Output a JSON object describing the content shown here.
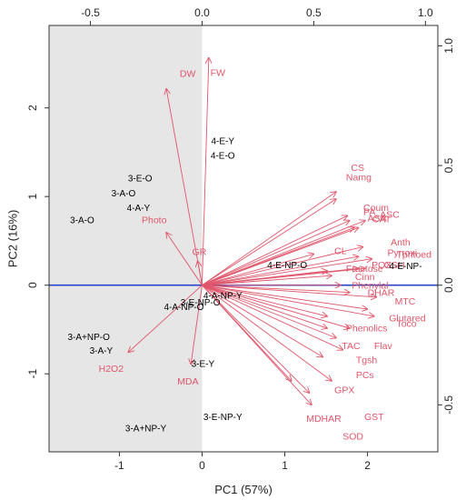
{
  "chart_data": {
    "type": "scatter",
    "subtype": "PCA biplot",
    "xlabel": "PC1 (57%)",
    "ylabel": "PC2 (16%)",
    "xlim": [
      -1.85,
      2.85
    ],
    "ylim": [
      -1.88,
      2.93
    ],
    "x_ticks": [
      -1,
      0,
      1,
      2
    ],
    "y_ticks": [
      -1,
      0,
      1,
      2
    ],
    "top_axis_ticks": [
      -0.5,
      0.0,
      0.5,
      1.0
    ],
    "right_axis_ticks": [
      -0.5,
      0.0,
      0.5,
      1.0
    ],
    "loading_scale": 2.7,
    "shaded_region": {
      "x_from": -1.85,
      "x_to": 0
    },
    "colors": {
      "arrow": "#e0566b",
      "shade": "#e6e6e6",
      "hline": "#2a44c8",
      "observation": "#000000"
    },
    "variables": [
      {
        "label": "DW",
        "x": -0.16,
        "y": 0.82,
        "lx": -0.27,
        "ly": 2.35,
        "anchor": "start"
      },
      {
        "label": "FW",
        "x": 0.03,
        "y": 0.95,
        "lx": 0.1,
        "ly": 2.36,
        "anchor": "start"
      },
      {
        "label": "GR",
        "x": -0.02,
        "y": 0.1,
        "lx": -0.12,
        "ly": 0.34,
        "anchor": "start"
      },
      {
        "label": "Photo",
        "x": -0.16,
        "y": 0.22,
        "lx": -0.73,
        "ly": 0.7,
        "anchor": "start"
      },
      {
        "label": "H2O2",
        "x": -0.33,
        "y": -0.28,
        "lx": -1.25,
        "ly": -0.98,
        "anchor": "start"
      },
      {
        "label": "MDA",
        "x": -0.05,
        "y": -0.33,
        "lx": -0.3,
        "ly": -1.12,
        "anchor": "start"
      },
      {
        "label": "CS",
        "x": 0.6,
        "y": 0.39,
        "lx": 1.8,
        "ly": 1.29,
        "anchor": "start"
      },
      {
        "label": "Namg",
        "x": 0.6,
        "y": 0.36,
        "lx": 1.74,
        "ly": 1.18,
        "anchor": "start"
      },
      {
        "label": "Coum",
        "x": 0.65,
        "y": 0.29,
        "lx": 1.95,
        "ly": 0.84,
        "anchor": "start"
      },
      {
        "label": "PA",
        "x": 0.66,
        "y": 0.27,
        "lx": 1.95,
        "ly": 0.79,
        "anchor": "start"
      },
      {
        "label": "ASC",
        "x": 0.73,
        "y": 0.27,
        "lx": 2.15,
        "ly": 0.76,
        "anchor": "start"
      },
      {
        "label": "CAT",
        "x": 0.7,
        "y": 0.24,
        "lx": 2.06,
        "ly": 0.71,
        "anchor": "start"
      },
      {
        "label": "ASA",
        "x": 0.68,
        "y": 0.24,
        "lx": 2.0,
        "ly": 0.72,
        "anchor": "start"
      },
      {
        "label": "Anth",
        "x": 0.72,
        "y": 0.16,
        "lx": 2.28,
        "ly": 0.45,
        "anchor": "start"
      },
      {
        "label": "Pyrroxi",
        "x": 0.7,
        "y": 0.12,
        "lx": 2.24,
        "ly": 0.33,
        "anchor": "start"
      },
      {
        "label": "Tphtoed",
        "x": 0.76,
        "y": 0.11,
        "lx": 2.35,
        "ly": 0.31,
        "anchor": "start"
      },
      {
        "label": "POX",
        "x": 0.7,
        "y": 0.07,
        "lx": 2.05,
        "ly": 0.19,
        "anchor": "start"
      },
      {
        "label": "GSH",
        "x": 0.73,
        "y": 0.07,
        "lx": 2.2,
        "ly": 0.19,
        "anchor": "start"
      },
      {
        "label": "CL",
        "x": 0.5,
        "y": 0.13,
        "lx": 1.6,
        "ly": 0.35,
        "anchor": "start"
      },
      {
        "label": "Fructose",
        "x": 0.56,
        "y": 0.06,
        "lx": 1.74,
        "ly": 0.15,
        "anchor": "start"
      },
      {
        "label": "Cinn",
        "x": 0.58,
        "y": 0.04,
        "lx": 1.85,
        "ly": 0.06,
        "anchor": "start"
      },
      {
        "label": "Phenylal",
        "x": 0.62,
        "y": 0.0,
        "lx": 1.81,
        "ly": -0.04,
        "anchor": "start"
      },
      {
        "label": "DHAR",
        "x": 0.66,
        "y": -0.03,
        "lx": 2.0,
        "ly": -0.12,
        "anchor": "start"
      },
      {
        "label": "MTC",
        "x": 0.78,
        "y": -0.05,
        "lx": 2.33,
        "ly": -0.22,
        "anchor": "start"
      },
      {
        "label": "Glutared",
        "x": 0.74,
        "y": -0.1,
        "lx": 2.26,
        "ly": -0.41,
        "anchor": "start"
      },
      {
        "label": "Toco",
        "x": 0.77,
        "y": -0.13,
        "lx": 2.35,
        "ly": -0.47,
        "anchor": "start"
      },
      {
        "label": "Phenolics",
        "x": 0.56,
        "y": -0.13,
        "lx": 1.74,
        "ly": -0.52,
        "anchor": "start"
      },
      {
        "label": "TAC",
        "x": 0.56,
        "y": -0.18,
        "lx": 1.69,
        "ly": -0.72,
        "anchor": "start"
      },
      {
        "label": "Flav",
        "x": 0.66,
        "y": -0.18,
        "lx": 2.08,
        "ly": -0.72,
        "anchor": "start"
      },
      {
        "label": "Tgsh",
        "x": 0.6,
        "y": -0.22,
        "lx": 1.86,
        "ly": -0.88,
        "anchor": "start"
      },
      {
        "label": "PCs",
        "x": 0.63,
        "y": -0.27,
        "lx": 1.86,
        "ly": -1.05,
        "anchor": "start"
      },
      {
        "label": "GPX",
        "x": 0.54,
        "y": -0.3,
        "lx": 1.6,
        "ly": -1.22,
        "anchor": "start"
      },
      {
        "label": "MDHAR",
        "x": 0.48,
        "y": -0.45,
        "lx": 1.26,
        "ly": -1.54,
        "anchor": "start"
      },
      {
        "label": "GST",
        "x": 0.58,
        "y": -0.4,
        "lx": 1.96,
        "ly": -1.52,
        "anchor": "start"
      },
      {
        "label": "SOD",
        "x": 0.49,
        "y": -0.5,
        "lx": 1.7,
        "ly": -1.74,
        "anchor": "start"
      },
      {
        "label": "",
        "x": 0.4,
        "y": -0.4
      }
    ],
    "observations": [
      {
        "label": "4-E-Y",
        "x": 0.25,
        "y": 1.59
      },
      {
        "label": "4-E-O",
        "x": 0.25,
        "y": 1.43
      },
      {
        "label": "3-E-O",
        "x": -0.75,
        "y": 1.17
      },
      {
        "label": "3-A-O",
        "x": -0.95,
        "y": 1.0
      },
      {
        "label": "4-A-Y",
        "x": -0.77,
        "y": 0.84
      },
      {
        "label": "3-A-O",
        "x": -1.45,
        "y": 0.7
      },
      {
        "label": "4-E-NP-O",
        "x": 1.03,
        "y": 0.19
      },
      {
        "label": "4-E-NP-",
        "x": 2.46,
        "y": 0.18
      },
      {
        "label": "4-A-NP-Y",
        "x": 0.25,
        "y": -0.15
      },
      {
        "label": "3-E-NP-O",
        "x": -0.02,
        "y": -0.23
      },
      {
        "label": "4-A-NP-O",
        "x": -0.22,
        "y": -0.28
      },
      {
        "label": "3-A+NP-O",
        "x": -1.37,
        "y": -0.62
      },
      {
        "label": "3-A-Y",
        "x": -1.22,
        "y": -0.77
      },
      {
        "label": "3-E-Y",
        "x": 0.01,
        "y": -0.92
      },
      {
        "label": "3-E-NP-Y",
        "x": 0.25,
        "y": -1.52
      },
      {
        "label": "3-A+NP-Y",
        "x": -0.68,
        "y": -1.65
      }
    ]
  }
}
